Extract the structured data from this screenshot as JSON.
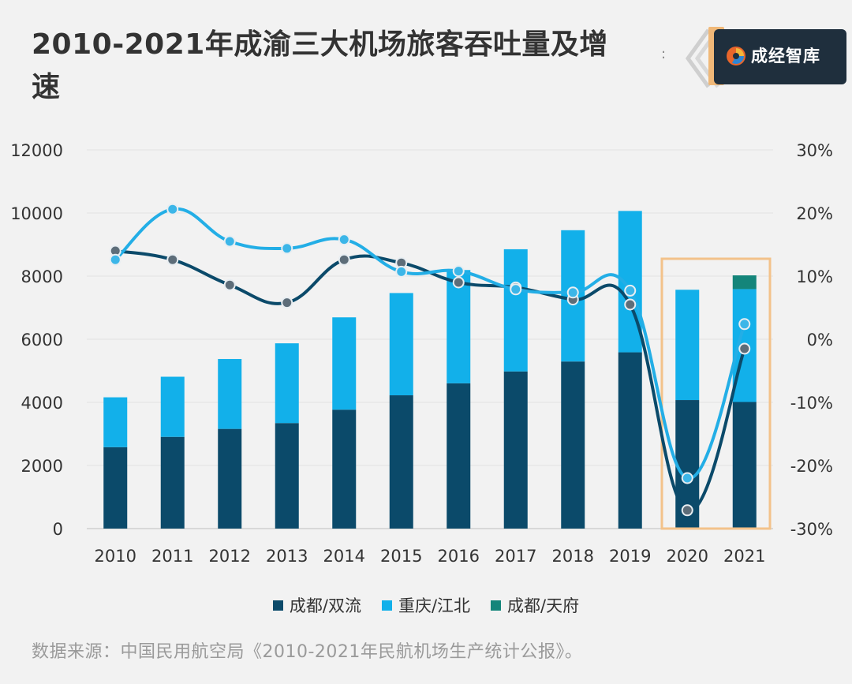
{
  "title": "2010-2021年成渝三大机场旅客吞吐量及增速",
  "brand": {
    "name": "成经智库"
  },
  "source": "数据来源：中国民用航空局《2010-2021年民航机场生产统计公报》。",
  "colors": {
    "shuangliu": "#0b4a6a",
    "jiangbei": "#12b0ea",
    "tianfu": "#14857a",
    "line_shuangliu": "#0b4a6a",
    "line_jiangbei": "#23aee6",
    "highlight": "#f3c28a"
  },
  "chart_data": {
    "type": "bar",
    "stacked": true,
    "categories": [
      "2010",
      "2011",
      "2012",
      "2013",
      "2014",
      "2015",
      "2016",
      "2017",
      "2018",
      "2019",
      "2020",
      "2021"
    ],
    "series": [
      {
        "name": "成都/双流",
        "type": "bar",
        "values": [
          2580,
          2907,
          3159,
          3344,
          3768,
          4224,
          4604,
          4980,
          5295,
          5586,
          4074,
          4012
        ]
      },
      {
        "name": "重庆/江北",
        "type": "bar",
        "values": [
          1580,
          1905,
          2215,
          2527,
          2926,
          3240,
          3589,
          3872,
          4160,
          4479,
          3494,
          3577
        ]
      },
      {
        "name": "成都/天府",
        "type": "bar",
        "values": [
          0,
          0,
          0,
          0,
          0,
          0,
          0,
          0,
          0,
          0,
          0,
          435
        ]
      },
      {
        "type": "line",
        "axis": "right",
        "values": [
          14.0,
          12.6,
          8.6,
          5.8,
          12.6,
          12.1,
          9.0,
          8.2,
          6.3,
          5.5,
          -27.1,
          -1.5
        ]
      },
      {
        "type": "line",
        "axis": "right",
        "values": [
          12.6,
          20.6,
          15.5,
          14.4,
          15.8,
          10.7,
          10.8,
          7.9,
          7.4,
          7.7,
          -22.0,
          2.4
        ]
      }
    ],
    "y_left": {
      "min": 0,
      "max": 12000,
      "ticks": [
        "0",
        "2000",
        "4000",
        "6000",
        "8000",
        "10000",
        "12000"
      ]
    },
    "y_right": {
      "min": -30,
      "max": 30,
      "ticks": [
        "-30%",
        "-20%",
        "-10%",
        "0%",
        "10%",
        "20%",
        "30%"
      ]
    },
    "highlight_categories": [
      "2020",
      "2021"
    ],
    "grid": true,
    "legend_position": "bottom"
  }
}
